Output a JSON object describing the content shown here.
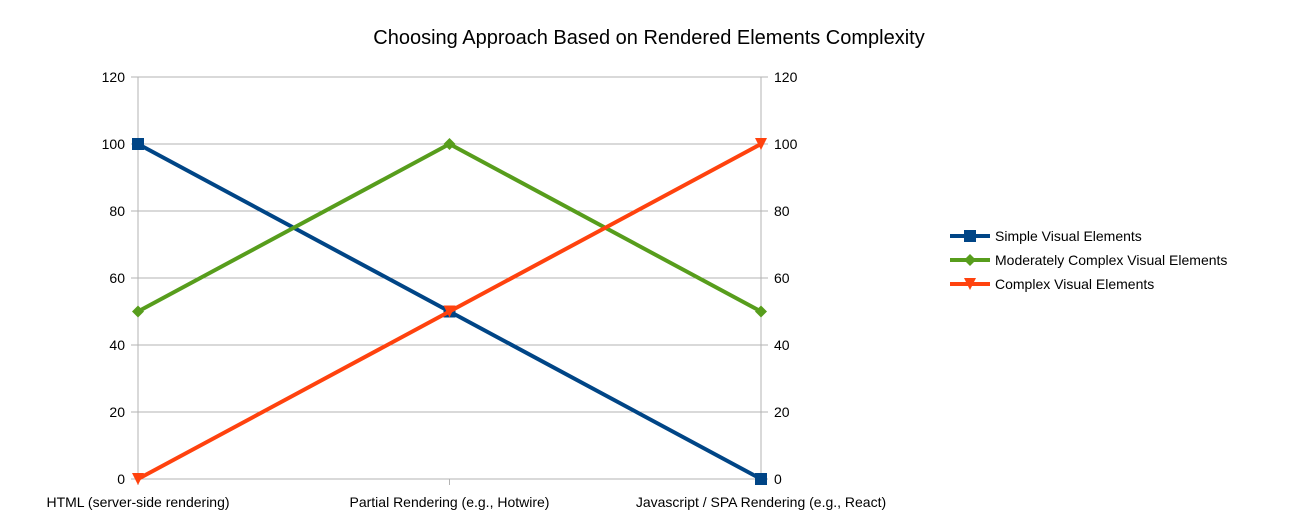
{
  "chart_data": {
    "type": "line",
    "title": "Choosing Approach Based on Rendered Elements Complexity",
    "categories": [
      "HTML (server-side rendering)",
      "Partial Rendering (e.g., Hotwire)",
      "Javascript / SPA Rendering (e.g., React)"
    ],
    "series": [
      {
        "name": "Simple Visual Elements",
        "values": [
          100,
          50,
          0
        ],
        "color": "#004586",
        "marker": "square"
      },
      {
        "name": "Moderately Complex Visual Elements",
        "values": [
          50,
          100,
          50
        ],
        "color": "#579d1c",
        "marker": "diamond"
      },
      {
        "name": "Complex Visual Elements",
        "values": [
          0,
          50,
          100
        ],
        "color": "#ff420e",
        "marker": "triangle-down"
      }
    ],
    "ylim": [
      0,
      120
    ],
    "yticks": [
      0,
      20,
      40,
      60,
      80,
      100,
      120
    ],
    "secondary_y_axis": true,
    "grid": true,
    "legend_position": "right"
  }
}
